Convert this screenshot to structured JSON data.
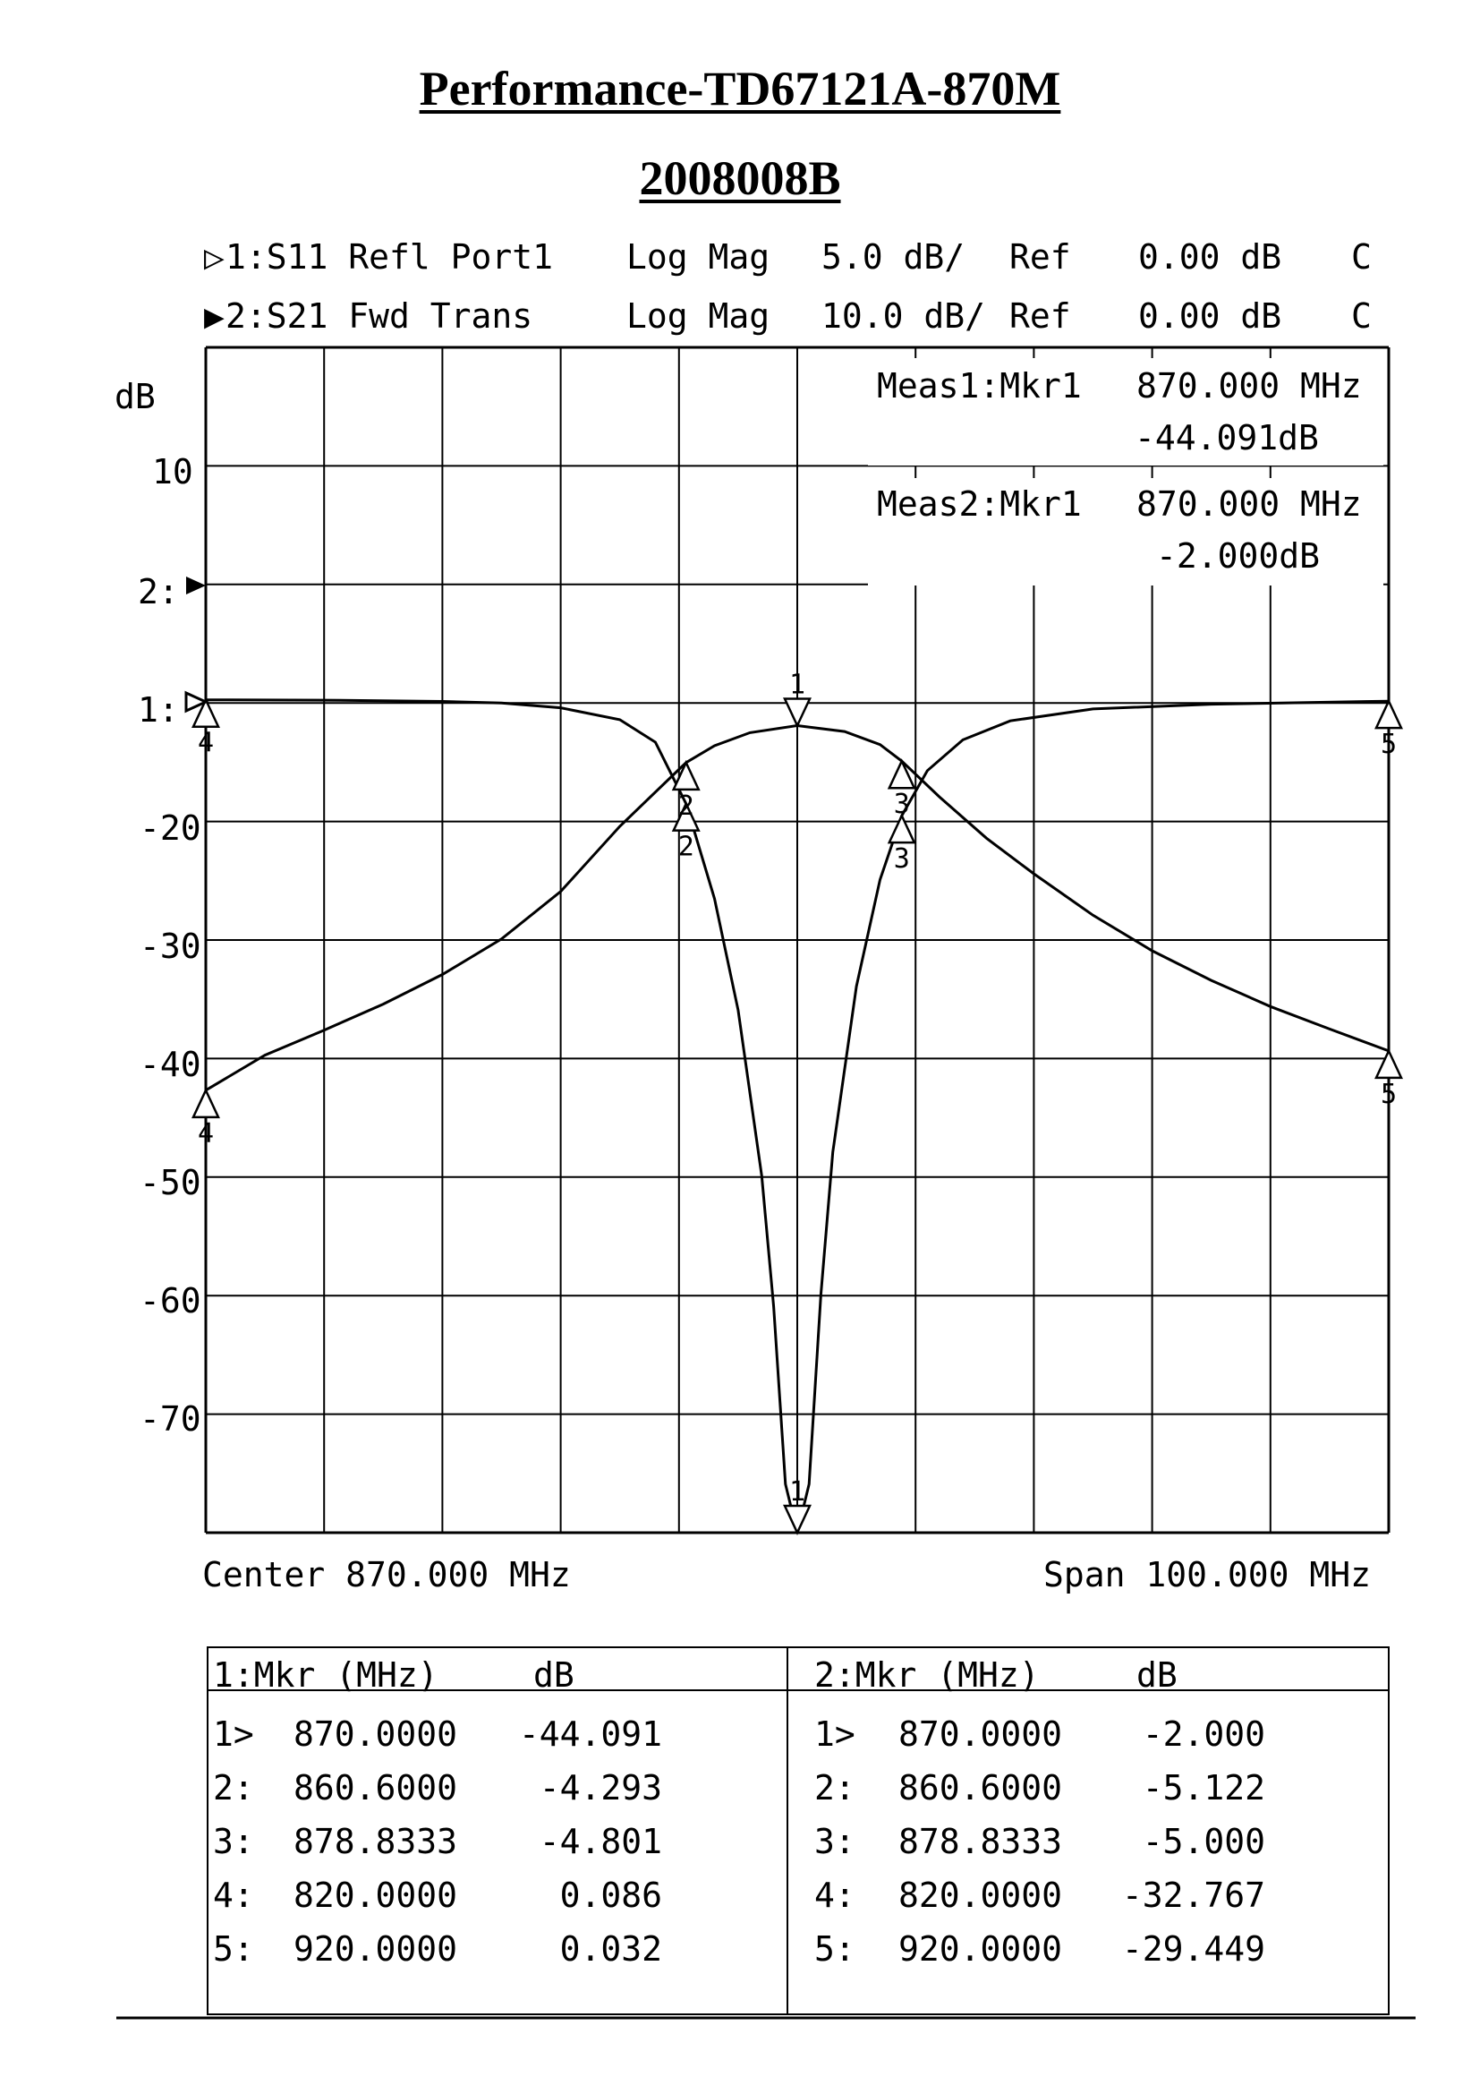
{
  "title": "Performance-TD67121A-870M",
  "subtitle": "2008008B",
  "channels": [
    {
      "marker": "▷",
      "text": "1:S11 Refl Port1",
      "format": "Log Mag",
      "scale": "5.0 dB/",
      "ref_label": "Ref",
      "ref": "0.00 dB",
      "flag": "C"
    },
    {
      "marker": "▶",
      "text": "2:S21 Fwd Trans",
      "format": "Log Mag",
      "scale": "10.0 dB/",
      "ref_label": "Ref",
      "ref": "0.00 dB",
      "flag": "C"
    }
  ],
  "annotations": {
    "meas1_label": "Meas1:Mkr1",
    "meas1_freq": "870.000 MHz",
    "meas1_value": "-44.091dB",
    "meas2_label": "Meas2:Mkr1",
    "meas2_freq": "870.000 MHz",
    "meas2_value": "-2.000dB"
  },
  "axis": {
    "unit": "dB",
    "ticks": [
      "10",
      "-20",
      "-30",
      "-40",
      "-50",
      "-60",
      "-70"
    ],
    "ref_markers": [
      "2:",
      "1:"
    ]
  },
  "footer": {
    "center": "Center 870.000 MHz",
    "span": "Span 100.000 MHz"
  },
  "chart_data": {
    "type": "line",
    "x_center_mhz": 870.0,
    "x_span_mhz": 100.0,
    "xlim": [
      820,
      920
    ],
    "grid": true,
    "series": [
      {
        "name": "1:S11 Refl Port1",
        "scale_db_per_div": 5.0,
        "ref_db": 0.0,
        "x": [
          820,
          830,
          840,
          845,
          850,
          855,
          858,
          860.6,
          863,
          865,
          867,
          868,
          869,
          870,
          871,
          872,
          873,
          875,
          877,
          878.8333,
          881,
          884,
          888,
          895,
          905,
          920
        ],
        "y": [
          0.086,
          0.07,
          0.02,
          -0.05,
          -0.25,
          -0.75,
          -1.7,
          -4.293,
          -8.3,
          -13.0,
          -20.0,
          -25.5,
          -33.0,
          -44.091,
          -33.0,
          -25.0,
          -19.0,
          -12.0,
          -7.5,
          -4.801,
          -2.9,
          -1.6,
          -0.8,
          -0.3,
          -0.1,
          0.032
        ]
      },
      {
        "name": "2:S21 Fwd Trans",
        "scale_db_per_div": 10.0,
        "ref_db": 0.0,
        "x": [
          820,
          825,
          830,
          835,
          840,
          845,
          850,
          855,
          860.6,
          863,
          866,
          870,
          874,
          877,
          878.8333,
          882,
          886,
          890,
          895,
          900,
          905,
          910,
          915,
          920
        ],
        "y": [
          -32.767,
          -29.8,
          -27.7,
          -25.5,
          -23.0,
          -20.0,
          -16.0,
          -10.5,
          -5.122,
          -3.7,
          -2.6,
          -2.0,
          -2.5,
          -3.6,
          -5.0,
          -8.0,
          -11.5,
          -14.5,
          -18.0,
          -21.0,
          -23.5,
          -25.7,
          -27.6,
          -29.449
        ]
      }
    ],
    "markers": {
      "1": [
        {
          "id": "1",
          "sym": "1>",
          "freq": "870.0000",
          "db": "-44.091"
        },
        {
          "id": "2",
          "sym": "2:",
          "freq": "860.6000",
          "db": "-4.293"
        },
        {
          "id": "3",
          "sym": "3:",
          "freq": "878.8333",
          "db": "-4.801"
        },
        {
          "id": "4",
          "sym": "4:",
          "freq": "820.0000",
          "db": "0.086"
        },
        {
          "id": "5",
          "sym": "5:",
          "freq": "920.0000",
          "db": "0.032"
        }
      ],
      "2": [
        {
          "id": "1",
          "sym": "1>",
          "freq": "870.0000",
          "db": "-2.000"
        },
        {
          "id": "2",
          "sym": "2:",
          "freq": "860.6000",
          "db": "-5.122"
        },
        {
          "id": "3",
          "sym": "3:",
          "freq": "878.8333",
          "db": "-5.000"
        },
        {
          "id": "4",
          "sym": "4:",
          "freq": "820.0000",
          "db": "-32.767"
        },
        {
          "id": "5",
          "sym": "5:",
          "freq": "920.0000",
          "db": "-29.449"
        }
      ]
    }
  },
  "table": {
    "left_header": [
      "1:Mkr (MHz)",
      "dB"
    ],
    "right_header": [
      "2:Mkr (MHz)",
      "dB"
    ]
  }
}
